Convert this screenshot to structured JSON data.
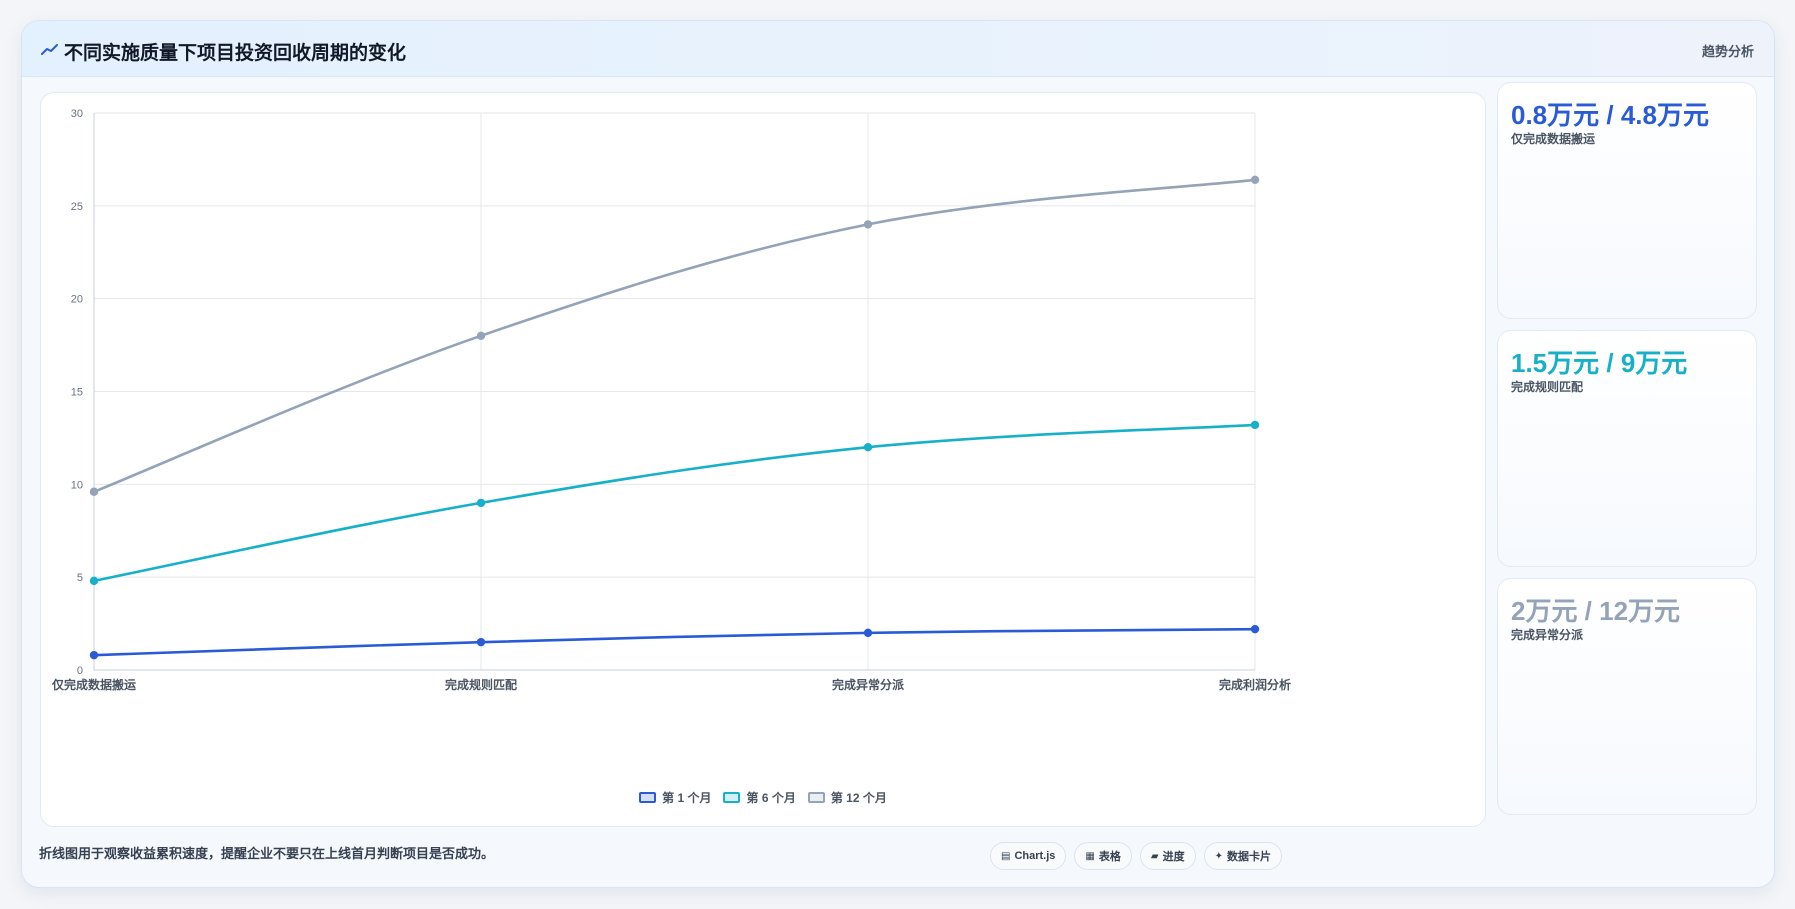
{
  "header": {
    "title": "不同实施质量下项目投资回收周期的变化",
    "right_label": "趋势分析"
  },
  "chart_data": {
    "type": "line",
    "categories": [
      "仅完成数据搬运",
      "完成规则匹配",
      "完成异常分派",
      "完成利润分析"
    ],
    "series": [
      {
        "name": "第 1 个月",
        "values": [
          0.8,
          1.5,
          2.0,
          2.2
        ],
        "color": "#2a5bd7"
      },
      {
        "name": "第 6 个月",
        "values": [
          4.8,
          9.0,
          12.0,
          13.2
        ],
        "color": "#17b0c9"
      },
      {
        "name": "第 12 个月",
        "values": [
          9.6,
          18.0,
          24.0,
          26.4
        ],
        "color": "#94a3b8"
      }
    ],
    "ylim": [
      0,
      30
    ],
    "yticks": [
      0,
      5,
      10,
      15,
      20,
      25,
      30
    ],
    "grid": true,
    "legend_position": "bottom",
    "title": "",
    "xlabel": "",
    "ylabel": ""
  },
  "stats": [
    {
      "value": "0.8万元 / 4.8万元",
      "label": "仅完成数据搬运",
      "color": "#2a5bd7"
    },
    {
      "value": "1.5万元 / 9万元",
      "label": "完成规则匹配",
      "color": "#17b0c9"
    },
    {
      "value": "2万元 / 12万元",
      "label": "完成异常分派",
      "color": "#94a3b8"
    }
  ],
  "footer": {
    "note": "折线图用于观察收益累积速度，提醒企业不要只在上线首月判断项目是否成功。",
    "chips": [
      {
        "icon": "▤",
        "label": "Chart.js",
        "icon_name": "chart-icon"
      },
      {
        "icon": "▦",
        "label": "表格",
        "icon_name": "table-icon"
      },
      {
        "icon": "▰",
        "label": "进度",
        "icon_name": "progress-icon"
      },
      {
        "icon": "✦",
        "label": "数据卡片",
        "icon_name": "sparkle-icon"
      }
    ]
  }
}
